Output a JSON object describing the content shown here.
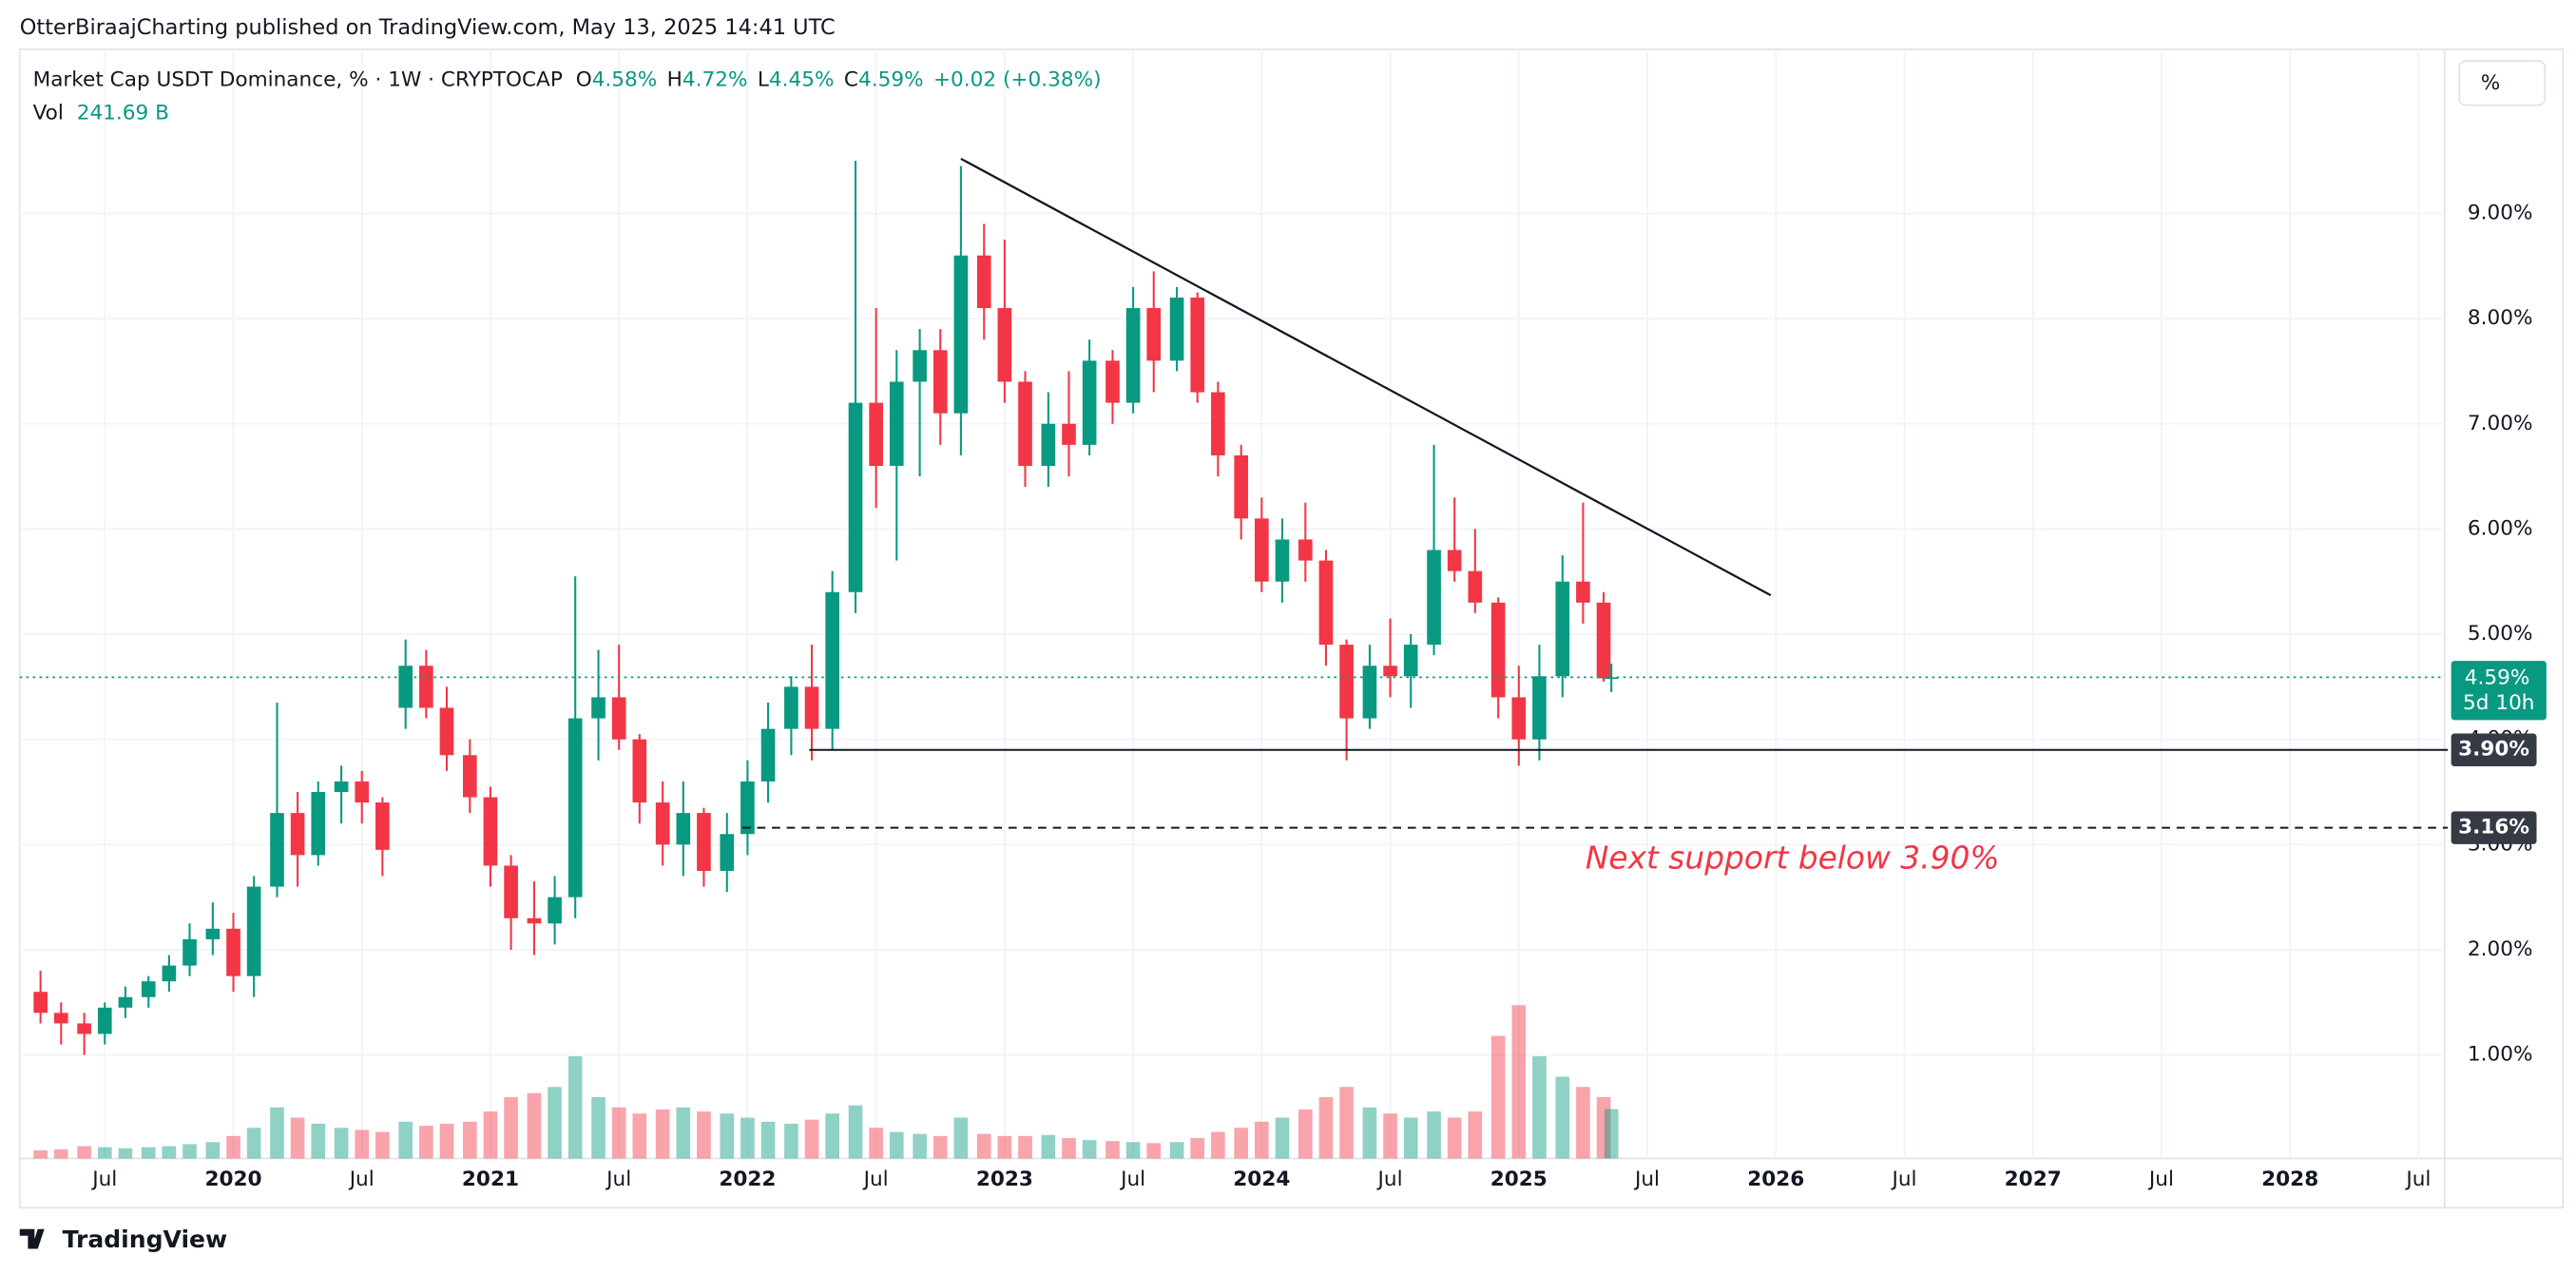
{
  "header": {
    "published": "OtterBiraajCharting published on TradingView.com, May 13, 2025 14:41 UTC",
    "symbol": "Market Cap USDT Dominance, % · 1W · CRYPTOCAP",
    "o_label": "O",
    "o": "4.58%",
    "h_label": "H",
    "h": "4.72%",
    "l_label": "L",
    "l": "4.45%",
    "c_label": "C",
    "c": "4.59%",
    "change": "+0.02 (+0.38%)",
    "volume_label": "Vol",
    "volume": "241.69 B",
    "scale_button": "%",
    "footer": "TradingView"
  },
  "chart_data": {
    "type": "candlestick",
    "title": "Market Cap USDT Dominance",
    "x": [
      2019.25,
      2019.33,
      2019.42,
      2019.5,
      2019.58,
      2019.67,
      2019.75,
      2019.83,
      2019.92,
      2020,
      2020.08,
      2020.17,
      2020.25,
      2020.33,
      2020.42,
      2020.5,
      2020.58,
      2020.67,
      2020.75,
      2020.83,
      2020.92,
      2021,
      2021.08,
      2021.17,
      2021.25,
      2021.33,
      2021.42,
      2021.5,
      2021.58,
      2021.67,
      2021.75,
      2021.83,
      2021.92,
      2022,
      2022.08,
      2022.17,
      2022.25,
      2022.33,
      2022.42,
      2022.5,
      2022.58,
      2022.67,
      2022.75,
      2022.83,
      2022.92,
      2023,
      2023.08,
      2023.17,
      2023.25,
      2023.33,
      2023.42,
      2023.5,
      2023.58,
      2023.67,
      2023.75,
      2023.83,
      2023.92,
      2024,
      2024.08,
      2024.17,
      2024.25,
      2024.33,
      2024.42,
      2024.5,
      2024.58,
      2024.67,
      2024.75,
      2024.83,
      2024.92,
      2025,
      2025.08,
      2025.17,
      2025.25,
      2025.33,
      2025.36
    ],
    "open": [
      1.6,
      1.4,
      1.3,
      1.2,
      1.45,
      1.55,
      1.7,
      1.85,
      2.1,
      2.2,
      1.75,
      2.6,
      3.3,
      2.9,
      3.5,
      3.6,
      3.4,
      4.3,
      4.7,
      4.3,
      3.85,
      3.45,
      2.8,
      2.3,
      2.25,
      2.5,
      4.2,
      4.4,
      4.0,
      3.4,
      3.0,
      3.3,
      2.75,
      3.1,
      3.6,
      4.1,
      4.5,
      4.1,
      5.4,
      7.2,
      6.6,
      7.4,
      7.7,
      7.1,
      8.6,
      8.1,
      7.4,
      6.6,
      7.0,
      6.8,
      7.6,
      7.2,
      8.1,
      7.6,
      8.2,
      7.3,
      6.7,
      6.1,
      5.5,
      5.9,
      5.7,
      4.9,
      4.2,
      4.7,
      4.6,
      4.9,
      5.8,
      5.6,
      5.3,
      4.4,
      4.0,
      4.6,
      5.5,
      5.3,
      4.58
    ],
    "high": [
      1.8,
      1.5,
      1.4,
      1.5,
      1.65,
      1.75,
      1.95,
      2.25,
      2.45,
      2.35,
      2.7,
      4.35,
      3.5,
      3.6,
      3.75,
      3.7,
      3.45,
      4.95,
      4.85,
      4.5,
      4.0,
      3.55,
      2.9,
      2.65,
      2.7,
      5.55,
      4.85,
      4.9,
      4.05,
      3.6,
      3.6,
      3.35,
      3.3,
      3.8,
      4.35,
      4.6,
      4.9,
      5.6,
      9.5,
      8.1,
      7.7,
      7.9,
      7.9,
      9.45,
      8.9,
      8.75,
      7.5,
      7.3,
      7.5,
      7.8,
      7.7,
      8.3,
      8.45,
      8.3,
      8.25,
      7.4,
      6.8,
      6.3,
      6.1,
      6.25,
      5.8,
      4.95,
      4.9,
      5.15,
      5.0,
      6.8,
      6.3,
      6.0,
      5.35,
      4.7,
      4.9,
      5.75,
      6.25,
      5.4,
      4.72
    ],
    "low": [
      1.3,
      1.1,
      1.0,
      1.1,
      1.35,
      1.45,
      1.6,
      1.75,
      1.95,
      1.6,
      1.55,
      2.5,
      2.6,
      2.8,
      3.2,
      3.2,
      2.7,
      4.1,
      4.2,
      3.7,
      3.3,
      2.6,
      2.0,
      1.95,
      2.05,
      2.3,
      3.8,
      3.9,
      3.2,
      2.8,
      2.7,
      2.6,
      2.55,
      2.9,
      3.4,
      3.85,
      3.8,
      3.9,
      5.2,
      6.2,
      5.7,
      6.5,
      6.8,
      6.7,
      7.8,
      7.2,
      6.4,
      6.4,
      6.5,
      6.7,
      7.0,
      7.1,
      7.3,
      7.5,
      7.2,
      6.5,
      5.9,
      5.4,
      5.3,
      5.5,
      4.7,
      3.8,
      4.1,
      4.4,
      4.3,
      4.8,
      5.5,
      5.2,
      4.2,
      3.75,
      3.8,
      4.4,
      5.1,
      4.55,
      4.45
    ],
    "close": [
      1.4,
      1.3,
      1.2,
      1.45,
      1.55,
      1.7,
      1.85,
      2.1,
      2.2,
      1.75,
      2.6,
      3.3,
      2.9,
      3.5,
      3.6,
      3.4,
      2.95,
      4.7,
      4.3,
      3.85,
      3.45,
      2.8,
      2.3,
      2.25,
      2.5,
      4.2,
      4.4,
      4.0,
      3.4,
      3.0,
      3.3,
      2.75,
      3.1,
      3.6,
      4.1,
      4.5,
      4.1,
      5.4,
      7.2,
      6.6,
      7.4,
      7.7,
      7.1,
      8.6,
      8.1,
      7.4,
      6.6,
      7.0,
      6.8,
      7.6,
      7.2,
      8.1,
      7.6,
      8.2,
      7.3,
      6.7,
      6.1,
      5.5,
      5.9,
      5.7,
      4.9,
      4.2,
      4.7,
      4.6,
      4.9,
      5.8,
      5.6,
      5.3,
      4.4,
      4.0,
      4.6,
      5.5,
      5.3,
      4.58,
      4.59
    ],
    "volume": [
      40,
      45,
      60,
      55,
      50,
      55,
      60,
      70,
      80,
      110,
      150,
      250,
      200,
      170,
      150,
      140,
      130,
      180,
      160,
      170,
      180,
      230,
      300,
      320,
      350,
      500,
      300,
      250,
      220,
      240,
      250,
      230,
      220,
      200,
      180,
      170,
      190,
      220,
      260,
      150,
      130,
      120,
      110,
      200,
      120,
      110,
      110,
      115,
      100,
      90,
      85,
      80,
      75,
      80,
      100,
      130,
      150,
      180,
      200,
      240,
      300,
      350,
      250,
      220,
      200,
      230,
      200,
      230,
      600,
      750,
      500,
      400,
      350,
      300,
      241.69
    ],
    "vlim": [
      0,
      1930
    ],
    "up_color": "#089981",
    "down_color": "#f23645",
    "xlim": [
      2019.169,
      2028.601
    ],
    "xticks": [
      {
        "value": 2019.5,
        "label": "Jul"
      },
      2020,
      {
        "value": 2020.5,
        "label": "Jul"
      },
      2021,
      {
        "value": 2021.5,
        "label": "Jul"
      },
      2022,
      {
        "value": 2022.5,
        "label": "Jul"
      },
      2023,
      {
        "value": 2023.5,
        "label": "Jul"
      },
      2024,
      {
        "value": 2024.5,
        "label": "Jul"
      },
      2025,
      {
        "value": 2025.5,
        "label": "Jul"
      },
      2026,
      {
        "value": 2026.5,
        "label": "Jul"
      },
      2027,
      {
        "value": 2027.5,
        "label": "Jul"
      },
      2028,
      {
        "value": 2028.5,
        "label": "Jul"
      }
    ],
    "ylim": [
      0.016,
      10.56
    ],
    "yticks": [
      {
        "value": 1,
        "label": "1.00%"
      },
      {
        "value": 2,
        "label": "2.00%"
      },
      {
        "value": 3,
        "label": "3.00%"
      },
      {
        "value": 4,
        "label": "4.00%"
      },
      {
        "value": 5,
        "label": "5.00%"
      },
      {
        "value": 6,
        "label": "6.00%"
      },
      {
        "value": 7,
        "label": "7.00%"
      },
      {
        "value": 8,
        "label": "8.00%"
      },
      {
        "value": 9,
        "label": "9.00%"
      }
    ],
    "grid": true,
    "last_price": {
      "value": 4.59,
      "label": "4.59%",
      "countdown": "5d 10h",
      "color": "#089981"
    },
    "levels": [
      {
        "value": 3.9,
        "label": "3.90%",
        "x_start": 2022.24,
        "style": "solid"
      },
      {
        "value": 3.16,
        "label": "3.16%",
        "x_start": 2021.98,
        "style": "dashed"
      }
    ],
    "trendline": {
      "x": [
        2022.83,
        2025.98
      ],
      "y": [
        9.52,
        5.37
      ]
    },
    "annotation": {
      "text": "Next support below 3.90%",
      "color": "#f23645"
    }
  }
}
